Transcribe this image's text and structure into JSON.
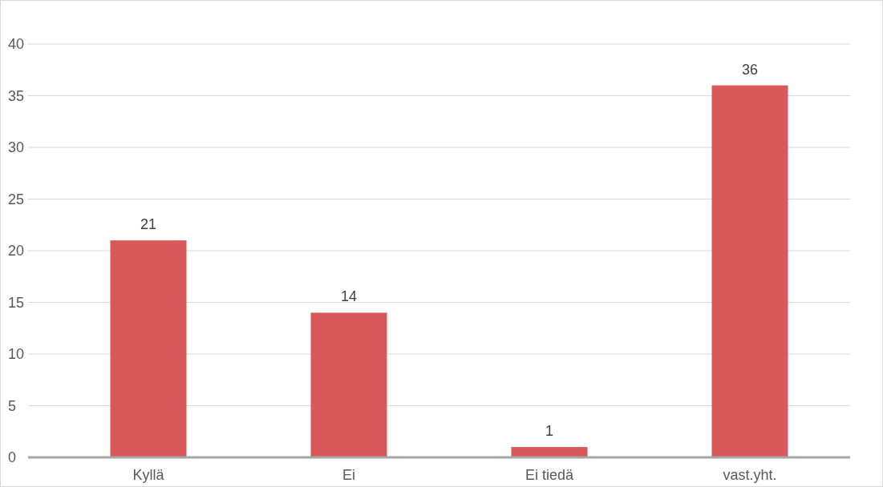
{
  "chart_data": {
    "type": "bar",
    "categories": [
      "Kyllä",
      "Ei",
      "Ei tiedä",
      "vast.yht."
    ],
    "values": [
      21,
      14,
      1,
      36
    ],
    "color": "#d9585a",
    "ylim": [
      0,
      40
    ],
    "yticks": [
      0,
      5,
      10,
      15,
      20,
      25,
      30,
      35,
      40
    ],
    "grid": "y",
    "data_labels": true
  }
}
